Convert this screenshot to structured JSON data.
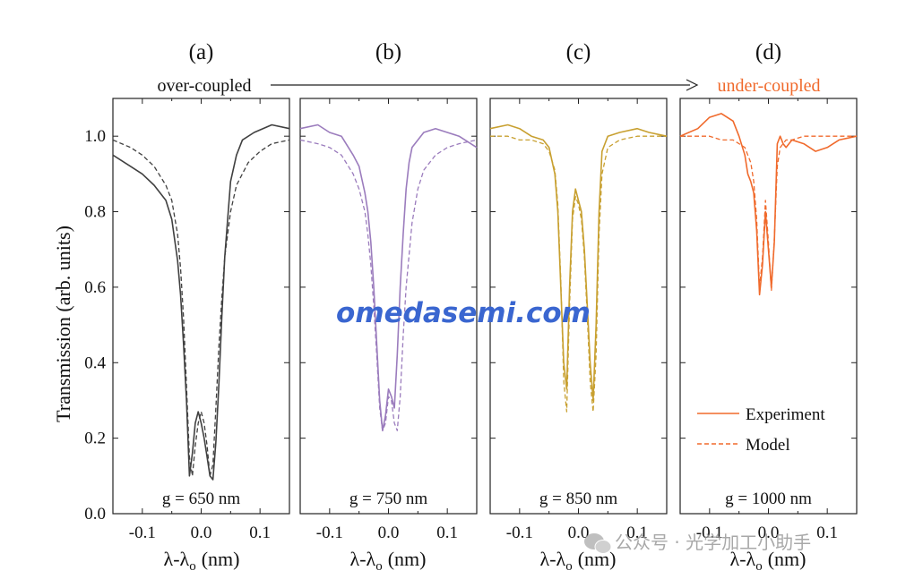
{
  "figure": {
    "top_left_label": "over-coupled",
    "top_right_label": "under-coupled",
    "ylabel": "Transmission (arb. units)",
    "xlabel": "λ-λ",
    "xlabel_sub": "o",
    "xlabel_unit": "(nm)",
    "legend": {
      "experiment": "Experiment",
      "model": "Model"
    },
    "watermark": "omedasemi.com",
    "wechat_text": "公众号 · 光学加工小助手",
    "colors": {
      "a": "#404040",
      "b": "#9b7cbd",
      "c": "#c8a030",
      "d": "#f06a2c",
      "over_label": "#111111",
      "under_label": "#f06a2c",
      "watermark": "#3a66d0"
    }
  },
  "chart_data": [
    {
      "type": "line",
      "panel_label": "(a)",
      "annotation": "g = 650 nm",
      "color": "#404040",
      "xlim": [
        -0.15,
        0.15
      ],
      "ylim": [
        0.0,
        1.1
      ],
      "xticks": [
        "-0.1",
        "0.0",
        "0.1"
      ],
      "yticks": [
        "0.0",
        "0.2",
        "0.4",
        "0.6",
        "0.8",
        "1.0"
      ],
      "series": [
        {
          "name": "Experiment",
          "style": "solid",
          "x": [
            -0.15,
            -0.12,
            -0.1,
            -0.08,
            -0.06,
            -0.05,
            -0.04,
            -0.035,
            -0.03,
            -0.025,
            -0.02,
            -0.015,
            -0.01,
            -0.005,
            0.0,
            0.005,
            0.01,
            0.015,
            0.02,
            0.025,
            0.03,
            0.035,
            0.04,
            0.05,
            0.06,
            0.07,
            0.09,
            0.12,
            0.15
          ],
          "y": [
            0.95,
            0.92,
            0.9,
            0.87,
            0.83,
            0.78,
            0.67,
            0.58,
            0.45,
            0.3,
            0.1,
            0.16,
            0.24,
            0.27,
            0.24,
            0.2,
            0.15,
            0.1,
            0.09,
            0.19,
            0.34,
            0.52,
            0.68,
            0.88,
            0.95,
            0.99,
            1.01,
            1.03,
            1.02
          ]
        },
        {
          "name": "Model",
          "style": "dashed",
          "x": [
            -0.15,
            -0.12,
            -0.1,
            -0.08,
            -0.06,
            -0.05,
            -0.04,
            -0.035,
            -0.03,
            -0.025,
            -0.02,
            -0.015,
            -0.01,
            -0.005,
            0.0,
            0.005,
            0.01,
            0.015,
            0.02,
            0.025,
            0.03,
            0.035,
            0.04,
            0.05,
            0.06,
            0.08,
            0.1,
            0.12,
            0.15
          ],
          "y": [
            0.99,
            0.97,
            0.95,
            0.92,
            0.87,
            0.83,
            0.74,
            0.65,
            0.52,
            0.34,
            0.15,
            0.1,
            0.18,
            0.24,
            0.27,
            0.24,
            0.18,
            0.1,
            0.13,
            0.28,
            0.44,
            0.57,
            0.68,
            0.8,
            0.87,
            0.93,
            0.96,
            0.98,
            0.99
          ]
        }
      ]
    },
    {
      "type": "line",
      "panel_label": "(b)",
      "annotation": "g = 750 nm",
      "color": "#9b7cbd",
      "xlim": [
        -0.15,
        0.15
      ],
      "ylim": [
        0.0,
        1.1
      ],
      "xticks": [
        "-0.1",
        "0.0",
        "0.1"
      ],
      "yticks": [
        "0.0",
        "0.2",
        "0.4",
        "0.6",
        "0.8",
        "1.0"
      ],
      "series": [
        {
          "name": "Experiment",
          "style": "solid",
          "x": [
            -0.15,
            -0.12,
            -0.1,
            -0.08,
            -0.06,
            -0.05,
            -0.04,
            -0.035,
            -0.03,
            -0.025,
            -0.02,
            -0.015,
            -0.01,
            -0.005,
            0.0,
            0.005,
            0.01,
            0.015,
            0.02,
            0.025,
            0.03,
            0.035,
            0.04,
            0.06,
            0.08,
            0.1,
            0.12,
            0.15
          ],
          "y": [
            1.02,
            1.03,
            1.01,
            1.0,
            0.95,
            0.92,
            0.85,
            0.8,
            0.72,
            0.6,
            0.45,
            0.3,
            0.22,
            0.26,
            0.33,
            0.31,
            0.28,
            0.42,
            0.6,
            0.74,
            0.86,
            0.93,
            0.97,
            1.01,
            1.02,
            1.01,
            1.0,
            0.97
          ]
        },
        {
          "name": "Model",
          "style": "dashed",
          "x": [
            -0.15,
            -0.12,
            -0.1,
            -0.08,
            -0.06,
            -0.05,
            -0.04,
            -0.035,
            -0.03,
            -0.025,
            -0.02,
            -0.015,
            -0.01,
            -0.005,
            0.0,
            0.005,
            0.01,
            0.015,
            0.02,
            0.025,
            0.03,
            0.04,
            0.05,
            0.06,
            0.08,
            0.1,
            0.12,
            0.15
          ],
          "y": [
            0.99,
            0.98,
            0.97,
            0.95,
            0.9,
            0.86,
            0.8,
            0.74,
            0.66,
            0.55,
            0.42,
            0.28,
            0.22,
            0.24,
            0.31,
            0.3,
            0.24,
            0.22,
            0.31,
            0.47,
            0.6,
            0.77,
            0.86,
            0.91,
            0.95,
            0.97,
            0.98,
            0.99
          ]
        }
      ]
    },
    {
      "type": "line",
      "panel_label": "(c)",
      "annotation": "g = 850 nm",
      "color": "#c8a030",
      "xlim": [
        -0.15,
        0.15
      ],
      "ylim": [
        0.0,
        1.1
      ],
      "xticks": [
        "-0.1",
        "0.0",
        "0.1"
      ],
      "yticks": [
        "0.0",
        "0.2",
        "0.4",
        "0.6",
        "0.8",
        "1.0"
      ],
      "series": [
        {
          "name": "Experiment",
          "style": "solid",
          "x": [
            -0.15,
            -0.12,
            -0.1,
            -0.08,
            -0.06,
            -0.05,
            -0.04,
            -0.035,
            -0.03,
            -0.025,
            -0.02,
            -0.015,
            -0.01,
            -0.005,
            0.0,
            0.005,
            0.01,
            0.015,
            0.02,
            0.025,
            0.03,
            0.035,
            0.04,
            0.05,
            0.07,
            0.1,
            0.12,
            0.15
          ],
          "y": [
            1.02,
            1.03,
            1.02,
            1.0,
            0.99,
            0.97,
            0.9,
            0.8,
            0.6,
            0.4,
            0.33,
            0.6,
            0.8,
            0.86,
            0.83,
            0.8,
            0.7,
            0.55,
            0.4,
            0.3,
            0.5,
            0.8,
            0.96,
            1.0,
            1.01,
            1.02,
            1.01,
            1.0
          ]
        },
        {
          "name": "Model",
          "style": "dashed",
          "x": [
            -0.15,
            -0.12,
            -0.1,
            -0.08,
            -0.06,
            -0.05,
            -0.04,
            -0.035,
            -0.03,
            -0.025,
            -0.02,
            -0.015,
            -0.01,
            -0.005,
            0.0,
            0.005,
            0.01,
            0.015,
            0.02,
            0.025,
            0.03,
            0.035,
            0.04,
            0.05,
            0.07,
            0.1,
            0.12,
            0.15
          ],
          "y": [
            1.0,
            1.0,
            0.99,
            0.99,
            0.98,
            0.96,
            0.91,
            0.82,
            0.62,
            0.35,
            0.27,
            0.55,
            0.78,
            0.84,
            0.82,
            0.78,
            0.68,
            0.52,
            0.35,
            0.27,
            0.42,
            0.74,
            0.9,
            0.97,
            0.99,
            1.0,
            1.0,
            1.0
          ]
        }
      ]
    },
    {
      "type": "line",
      "panel_label": "(d)",
      "annotation": "g = 1000 nm",
      "color": "#f06a2c",
      "xlim": [
        -0.15,
        0.15
      ],
      "ylim": [
        0.0,
        1.1
      ],
      "xticks": [
        "-0.1",
        "0.0",
        "0.1"
      ],
      "yticks": [
        "0.0",
        "0.2",
        "0.4",
        "0.6",
        "0.8",
        "1.0"
      ],
      "series": [
        {
          "name": "Experiment",
          "style": "solid",
          "x": [
            -0.15,
            -0.12,
            -0.1,
            -0.08,
            -0.06,
            -0.05,
            -0.04,
            -0.035,
            -0.03,
            -0.025,
            -0.02,
            -0.015,
            -0.01,
            -0.005,
            0.0,
            0.005,
            0.01,
            0.015,
            0.02,
            0.025,
            0.03,
            0.04,
            0.06,
            0.08,
            0.1,
            0.12,
            0.15
          ],
          "y": [
            1.0,
            1.02,
            1.05,
            1.06,
            1.04,
            1.0,
            0.95,
            0.9,
            0.88,
            0.85,
            0.75,
            0.58,
            0.66,
            0.8,
            0.7,
            0.6,
            0.72,
            0.98,
            1.0,
            0.98,
            0.97,
            0.99,
            0.98,
            0.96,
            0.97,
            0.99,
            1.0
          ]
        },
        {
          "name": "Model",
          "style": "dashed",
          "x": [
            -0.15,
            -0.12,
            -0.1,
            -0.08,
            -0.06,
            -0.05,
            -0.04,
            -0.035,
            -0.03,
            -0.025,
            -0.02,
            -0.015,
            -0.01,
            -0.005,
            0.0,
            0.005,
            0.01,
            0.015,
            0.02,
            0.025,
            0.03,
            0.04,
            0.06,
            0.08,
            0.1,
            0.12,
            0.15
          ],
          "y": [
            1.0,
            1.0,
            1.0,
            0.99,
            0.99,
            0.98,
            0.97,
            0.95,
            0.93,
            0.88,
            0.78,
            0.6,
            0.68,
            0.83,
            0.72,
            0.59,
            0.73,
            0.92,
            0.97,
            0.98,
            0.99,
            0.99,
            1.0,
            1.0,
            1.0,
            1.0,
            1.0
          ]
        }
      ]
    }
  ]
}
